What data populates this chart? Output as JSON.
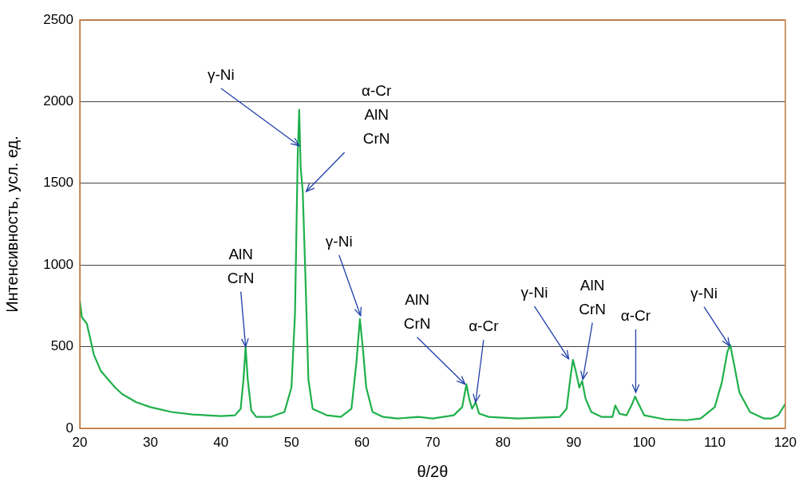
{
  "chart_data": {
    "type": "line",
    "xlabel": "θ/2θ",
    "ylabel": "Интенсивность, усл. ед.",
    "xlim": [
      20,
      120
    ],
    "xticks": [
      20,
      30,
      40,
      50,
      60,
      70,
      80,
      90,
      100,
      110,
      120
    ],
    "ylim": [
      0,
      2500
    ],
    "yticks": [
      0,
      500,
      1000,
      1500,
      2000,
      2500
    ],
    "grid": "y",
    "legend": false,
    "marker": "none",
    "line_style": "solid",
    "series": [
      {
        "color": "#1fb04b",
        "x": [
          20,
          20.3,
          21,
          22,
          23,
          24,
          25,
          26,
          28,
          30,
          33,
          36,
          40,
          42,
          42.8,
          43.2,
          43.5,
          43.8,
          44.3,
          45,
          47,
          49,
          50,
          50.5,
          50.9,
          51.1,
          51.3,
          51.6,
          52,
          52.4,
          53,
          55,
          57,
          58.5,
          59.2,
          59.7,
          60.1,
          60.6,
          61.5,
          63,
          65,
          68,
          70,
          73,
          74.2,
          74.8,
          75.2,
          75.6,
          76.1,
          76.6,
          78,
          82,
          85,
          88,
          89,
          89.6,
          89.9,
          90.3,
          90.8,
          91.2,
          91.7,
          92.5,
          94,
          95.5,
          95.9,
          96.5,
          97.5,
          98.3,
          98.7,
          99.2,
          100,
          103,
          106,
          108,
          110,
          111,
          111.8,
          112.2,
          112.7,
          113.5,
          115,
          117,
          118,
          119,
          120
        ],
        "values": [
          780,
          680,
          640,
          450,
          350,
          300,
          250,
          210,
          160,
          130,
          100,
          85,
          75,
          80,
          120,
          300,
          500,
          300,
          110,
          70,
          70,
          100,
          250,
          700,
          1700,
          1950,
          1600,
          1450,
          900,
          300,
          120,
          80,
          70,
          120,
          400,
          670,
          500,
          250,
          100,
          70,
          60,
          70,
          60,
          80,
          130,
          270,
          180,
          120,
          160,
          90,
          70,
          60,
          65,
          70,
          120,
          330,
          420,
          350,
          250,
          290,
          180,
          100,
          70,
          70,
          140,
          90,
          80,
          150,
          195,
          150,
          80,
          55,
          50,
          60,
          130,
          280,
          470,
          510,
          400,
          220,
          100,
          60,
          60,
          80,
          150
        ]
      }
    ],
    "annotations": [
      {
        "text": "γ-Ni",
        "x": 51.1,
        "y": 1730
      },
      {
        "text": "α-Cr\nAlN\nCrN",
        "x": 52.1,
        "y": 1450
      },
      {
        "text": "AlN\nCrN",
        "x": 43.5,
        "y": 500
      },
      {
        "text": "γ-Ni",
        "x": 59.8,
        "y": 690
      },
      {
        "text": "AlN\nCrN",
        "x": 74.6,
        "y": 270
      },
      {
        "text": "α-Cr",
        "x": 76.1,
        "y": 160
      },
      {
        "text": "γ-Ni",
        "x": 89.3,
        "y": 425
      },
      {
        "text": "AlN\nCrN",
        "x": 91.3,
        "y": 300
      },
      {
        "text": "α-Cr",
        "x": 98.8,
        "y": 220
      },
      {
        "text": "γ-Ni",
        "x": 112.1,
        "y": 505
      }
    ]
  }
}
